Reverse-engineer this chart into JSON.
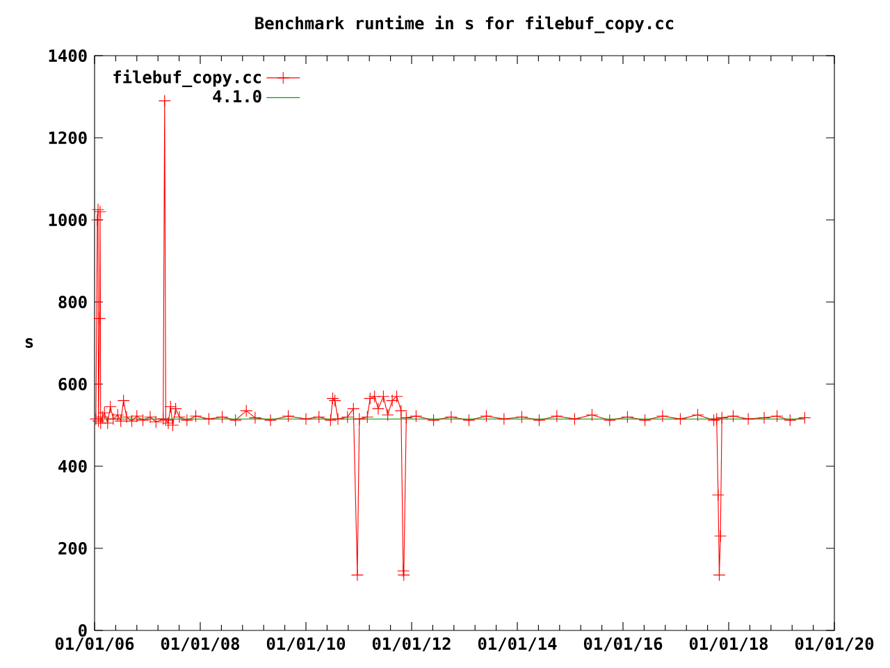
{
  "chart_data": {
    "type": "line",
    "title": "Benchmark runtime in s for filebuf_copy.cc",
    "ylabel": "s",
    "xlim": [
      "2006-01-01",
      "2020-01-01"
    ],
    "xticks": [
      {
        "value": "2006-01-01",
        "label": "01/01/06"
      },
      {
        "value": "2008-01-01",
        "label": "01/01/08"
      },
      {
        "value": "2010-01-01",
        "label": "01/01/10"
      },
      {
        "value": "2012-01-01",
        "label": "01/01/12"
      },
      {
        "value": "2014-01-01",
        "label": "01/01/14"
      },
      {
        "value": "2016-01-01",
        "label": "01/01/16"
      },
      {
        "value": "2018-01-01",
        "label": "01/01/18"
      },
      {
        "value": "2020-01-01",
        "label": "01/01/20"
      }
    ],
    "ylim": [
      0,
      1400
    ],
    "yticks": [
      0,
      200,
      400,
      600,
      800,
      1000,
      1200,
      1400
    ],
    "grid": false,
    "legend": "top left",
    "marker": "cross",
    "series": [
      {
        "name": "filebuf_copy.cc",
        "color": "#ff0000",
        "x": [
          "2006-01-10",
          "2006-01-20",
          "2006-01-25",
          "2006-01-28",
          "2006-02-05",
          "2006-02-08",
          "2006-02-12",
          "2006-02-25",
          "2006-03-10",
          "2006-04-01",
          "2006-04-20",
          "2006-05-10",
          "2006-06-10",
          "2006-07-01",
          "2006-07-20",
          "2006-08-10",
          "2006-09-15",
          "2006-10-20",
          "2006-12-01",
          "2007-01-20",
          "2007-03-01",
          "2007-04-20",
          "2007-04-30",
          "2007-05-08",
          "2007-05-25",
          "2007-06-10",
          "2007-06-25",
          "2007-07-15",
          "2007-08-10",
          "2007-10-01",
          "2007-12-01",
          "2008-03-01",
          "2008-06-01",
          "2008-09-01",
          "2008-11-15",
          "2009-01-15",
          "2009-05-01",
          "2009-09-01",
          "2010-01-01",
          "2010-04-01",
          "2010-06-20",
          "2010-07-05",
          "2010-07-20",
          "2010-08-10",
          "2010-10-15",
          "2010-11-25",
          "2010-12-22",
          "2011-01-05",
          "2011-03-01",
          "2011-03-20",
          "2011-04-20",
          "2011-05-15",
          "2011-06-20",
          "2011-07-20",
          "2011-08-20",
          "2011-09-20",
          "2011-10-20",
          "2011-11-04",
          "2011-11-08",
          "2011-11-25",
          "2012-02-01",
          "2012-06-01",
          "2012-10-01",
          "2013-02-01",
          "2013-06-01",
          "2013-10-01",
          "2014-02-01",
          "2014-06-01",
          "2014-10-01",
          "2015-02-01",
          "2015-06-01",
          "2015-10-01",
          "2016-02-01",
          "2016-06-01",
          "2016-10-01",
          "2017-02-01",
          "2017-06-01",
          "2017-09-20",
          "2017-10-10",
          "2017-10-20",
          "2017-10-28",
          "2017-11-05",
          "2017-11-15",
          "2018-02-01",
          "2018-05-16",
          "2018-09-03",
          "2018-12-01",
          "2019-03-01",
          "2019-06-10"
        ],
        "values": [
          515,
          1000,
          1025,
          510,
          760,
          1020,
          505,
          520,
          530,
          505,
          545,
          515,
          525,
          510,
          560,
          520,
          510,
          522,
          512,
          520,
          508,
          515,
          1290,
          512,
          505,
          545,
          500,
          540,
          520,
          512,
          522,
          515,
          520,
          512,
          535,
          518,
          512,
          522,
          515,
          520,
          512,
          565,
          560,
          515,
          520,
          540,
          135,
          515,
          520,
          565,
          570,
          540,
          570,
          525,
          560,
          570,
          535,
          145,
          135,
          518,
          522,
          512,
          520,
          512,
          522,
          515,
          520,
          512,
          522,
          515,
          525,
          512,
          520,
          512,
          522,
          515,
          525,
          512,
          515,
          330,
          135,
          230,
          518,
          522,
          515,
          518,
          522,
          512,
          518
        ]
      },
      {
        "name": "4.1.0",
        "color": "#00a000",
        "marker": "none",
        "x": [
          "2006-01-10",
          "2019-06-10"
        ],
        "values": [
          515,
          515
        ]
      }
    ]
  }
}
